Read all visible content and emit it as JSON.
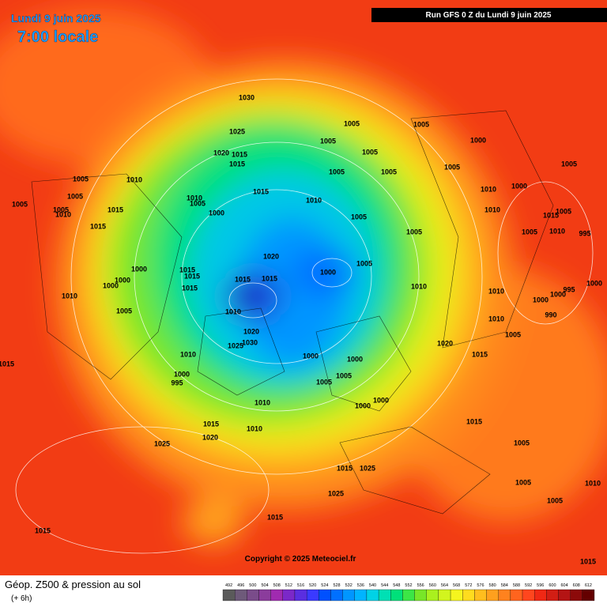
{
  "header": {
    "date": "Lundi 9 juin 2025",
    "time": "7:00 locale"
  },
  "run_info": "Run GFS 0 Z du Lundi 9 juin 2025",
  "isobar_labels": [
    1030,
    1025,
    1020,
    1015,
    1015,
    1005,
    1005,
    1005,
    1005,
    1000,
    1005,
    1005,
    1005,
    1005,
    1010,
    1015,
    1010,
    1010,
    1005,
    1000,
    1010,
    1000,
    1005,
    1005,
    1005,
    1005,
    1010,
    1015,
    1015,
    1005,
    1010,
    1005,
    1015,
    1005,
    1005,
    1010,
    995,
    1020,
    1005,
    1000,
    1000,
    1000,
    1000,
    1015,
    1015,
    1015,
    1015,
    1015,
    1010,
    1005,
    1010,
    1010,
    1010,
    1000,
    995,
    1000,
    1000,
    990,
    1010,
    1005,
    1020,
    1030,
    1025,
    1010,
    1000,
    1000,
    1020,
    1015,
    1000,
    995,
    1005,
    1005,
    1000,
    1000,
    1010,
    1015,
    1010,
    1020,
    1025,
    1015,
    1005,
    1025,
    1025,
    1015,
    1015,
    1005,
    1005,
    1010,
    1015,
    1015,
    1015
  ],
  "copyright": "Copyright © 2025 Meteociel.fr",
  "footer": {
    "title": "Géop. Z500 & pression au sol",
    "lead": "(+ 6h)"
  },
  "color_scale": {
    "labels": [
      492,
      496,
      500,
      504,
      508,
      512,
      516,
      520,
      524,
      528,
      532,
      536,
      540,
      544,
      548,
      552,
      556,
      560,
      564,
      568,
      572,
      576,
      580,
      584,
      588,
      592,
      596,
      600,
      604,
      608,
      612
    ]
  }
}
